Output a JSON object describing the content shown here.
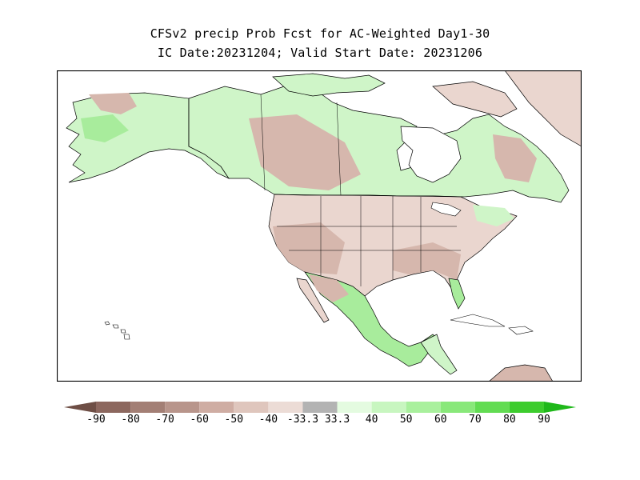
{
  "title": {
    "line1": "CFSv2 precip Prob Fcst for AC-Weighted Day1-30",
    "line2": "IC Date:20231204; Valid Start Date: 20231206"
  },
  "map": {
    "region": "North America",
    "ocean_color": "#ffffff",
    "land_base_color": "#ffffff",
    "coast_color": "#000000",
    "categories": [
      {
        "name": "dry-strong",
        "color": "#b38f85"
      },
      {
        "name": "dry-moderate",
        "color": "#d6b7ad"
      },
      {
        "name": "dry-light",
        "color": "#ead6cf"
      },
      {
        "name": "wet-light",
        "color": "#cff5c8"
      },
      {
        "name": "wet-moderate",
        "color": "#a8ec9c"
      },
      {
        "name": "wet-strong",
        "color": "#7ddc6d"
      }
    ]
  },
  "colorbar": {
    "labels": [
      "-90",
      "-80",
      "-70",
      "-60",
      "-50",
      "-40",
      "-33.3",
      "33.3",
      "40",
      "50",
      "60",
      "70",
      "80",
      "90"
    ],
    "colors": [
      "#6e4e45",
      "#8c675e",
      "#a37f75",
      "#b8958b",
      "#cfada3",
      "#dfc6bd",
      "#ecdcd6",
      "#b3b3b3",
      "#e4fbe0",
      "#c8f6c0",
      "#a9f09d",
      "#89e87a",
      "#62dc52",
      "#3dcc2d",
      "#1fb81a"
    ]
  }
}
